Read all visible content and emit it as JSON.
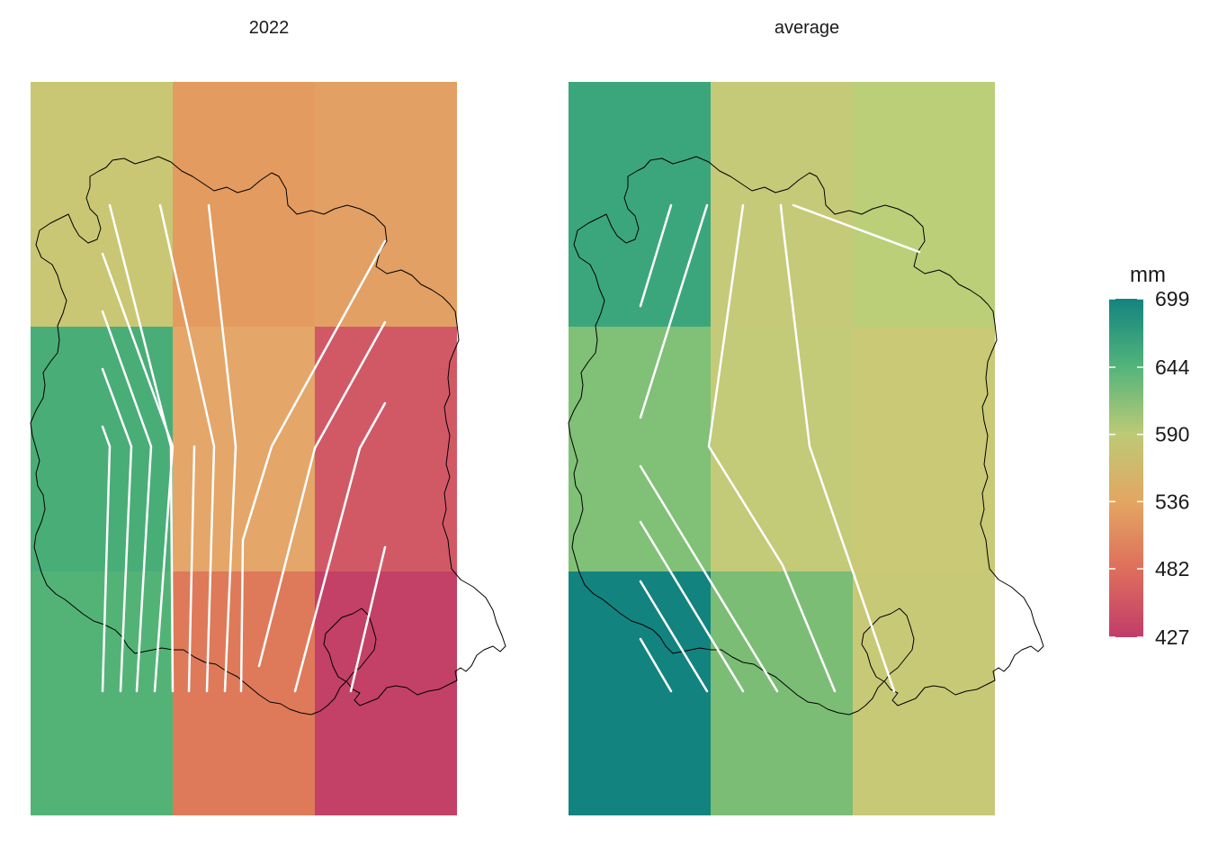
{
  "panels": [
    {
      "title": "2022",
      "cells": [
        {
          "row": 0,
          "col": 0,
          "value": 580,
          "color": "#c9c774"
        },
        {
          "row": 0,
          "col": 1,
          "value": 513,
          "color": "#e39b60"
        },
        {
          "row": 0,
          "col": 2,
          "value": 518,
          "color": "#e2a064"
        },
        {
          "row": 1,
          "col": 0,
          "value": 636,
          "color": "#49ad78"
        },
        {
          "row": 1,
          "col": 1,
          "value": 528,
          "color": "#e4a669"
        },
        {
          "row": 1,
          "col": 2,
          "value": 468,
          "color": "#d15966"
        },
        {
          "row": 2,
          "col": 0,
          "value": 626,
          "color": "#53b377"
        },
        {
          "row": 2,
          "col": 1,
          "value": 495,
          "color": "#de7a5a"
        },
        {
          "row": 2,
          "col": 2,
          "value": 440,
          "color": "#c34067"
        }
      ]
    },
    {
      "title": "average",
      "cells": [
        {
          "row": 0,
          "col": 0,
          "value": 660,
          "color": "#3ba67c"
        },
        {
          "row": 0,
          "col": 1,
          "value": 574,
          "color": "#c5ca79"
        },
        {
          "row": 0,
          "col": 2,
          "value": 586,
          "color": "#bacf78"
        },
        {
          "row": 1,
          "col": 0,
          "value": 604,
          "color": "#80c077"
        },
        {
          "row": 1,
          "col": 1,
          "value": 580,
          "color": "#c3ca78"
        },
        {
          "row": 1,
          "col": 2,
          "value": 566,
          "color": "#c9c976"
        },
        {
          "row": 2,
          "col": 0,
          "value": 699,
          "color": "#138380"
        },
        {
          "row": 2,
          "col": 1,
          "value": 604,
          "color": "#7bbd75"
        },
        {
          "row": 2,
          "col": 2,
          "value": 572,
          "color": "#c8c977"
        }
      ]
    }
  ],
  "legend": {
    "title": "mm",
    "min": 427,
    "max": 699,
    "labels": [
      "699",
      "644",
      "590",
      "536",
      "482",
      "427"
    ],
    "ticks": [
      699,
      644,
      590,
      536,
      482,
      427
    ],
    "colors": [
      "#c13c6a",
      "#de6e5c",
      "#e3a662",
      "#bdca76",
      "#52b47a",
      "#138380"
    ]
  },
  "colors": {
    "background": "#ffffff",
    "streamline": "#ffffff",
    "boundary": "#000000",
    "text": "#1a1a1a"
  }
}
